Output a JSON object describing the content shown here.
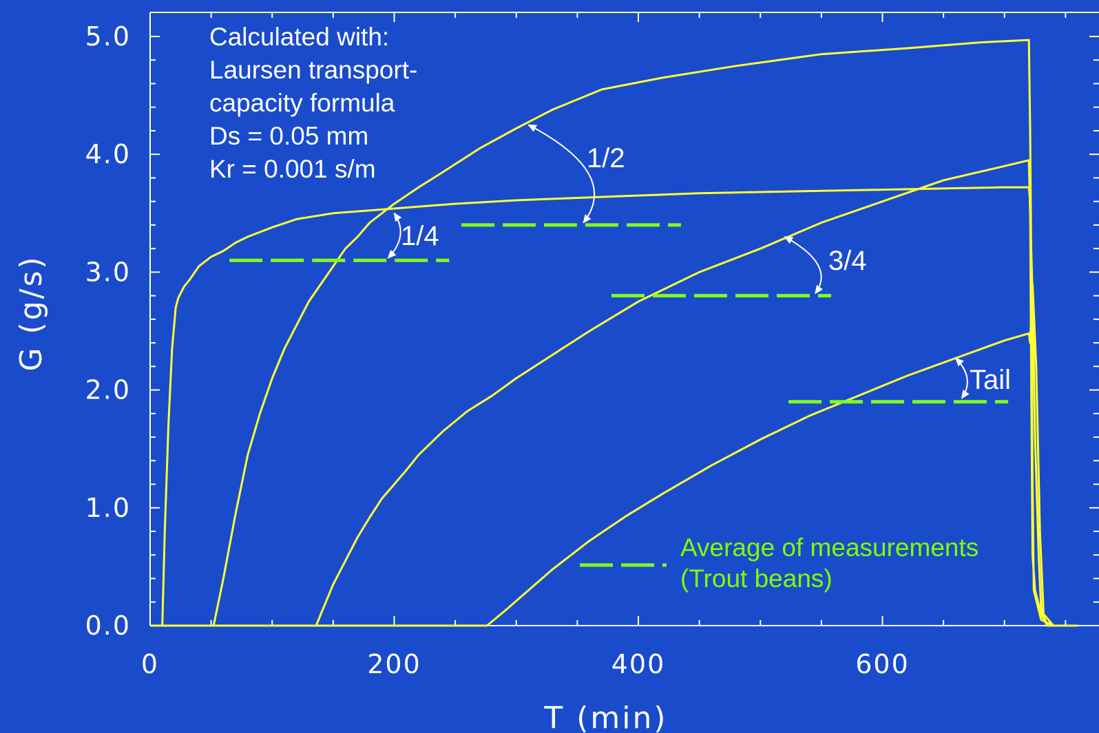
{
  "chart_data": {
    "type": "line",
    "xlabel": "T (min)",
    "ylabel": "G  (g/s)",
    "xlim": [
      0,
      760
    ],
    "ylim": [
      0,
      5.2
    ],
    "xticks": [
      "0",
      "200",
      "400",
      "600"
    ],
    "yticks": [
      "0.0",
      "1.0",
      "2.0",
      "3.0",
      "4.0",
      "5.0"
    ],
    "note_lines": [
      "Calculated with:",
      "Laursen transport-",
      "capacity formula",
      "Ds = 0.05 mm",
      "Kr = 0.001 s/m"
    ],
    "series": [
      {
        "name": "1/4",
        "x": [
          0,
          10,
          11,
          12,
          15,
          18,
          21,
          23,
          25,
          28,
          32,
          40,
          50,
          60,
          70,
          80,
          100,
          120,
          150,
          200,
          250,
          300,
          350,
          400,
          450,
          500,
          600,
          700,
          720,
          721,
          722,
          723,
          725,
          730,
          735,
          740,
          760
        ],
        "y": [
          0,
          0,
          0.4,
          0.8,
          1.7,
          2.35,
          2.7,
          2.78,
          2.82,
          2.88,
          2.93,
          3.05,
          3.13,
          3.18,
          3.25,
          3.3,
          3.38,
          3.45,
          3.5,
          3.54,
          3.58,
          3.61,
          3.63,
          3.65,
          3.67,
          3.68,
          3.7,
          3.72,
          3.72,
          3.6,
          2.0,
          0.6,
          0.3,
          0.1,
          0,
          0,
          0
        ]
      },
      {
        "name": "1/2",
        "x": [
          0,
          52,
          60,
          70,
          80,
          90,
          100,
          110,
          120,
          130,
          140,
          150,
          160,
          170,
          180,
          200,
          220,
          240,
          270,
          300,
          330,
          370,
          420,
          480,
          550,
          620,
          680,
          720,
          721,
          722,
          723,
          724,
          730,
          740,
          760
        ],
        "y": [
          0,
          0,
          0.4,
          0.95,
          1.45,
          1.8,
          2.1,
          2.35,
          2.55,
          2.75,
          2.9,
          3.05,
          3.2,
          3.3,
          3.42,
          3.58,
          3.72,
          3.85,
          4.05,
          4.22,
          4.38,
          4.55,
          4.65,
          4.75,
          4.85,
          4.9,
          4.95,
          4.97,
          4.2,
          3.0,
          1.2,
          0.3,
          0.05,
          0,
          0
        ]
      },
      {
        "name": "3/4",
        "x": [
          0,
          136,
          140,
          150,
          160,
          170,
          180,
          190,
          200,
          210,
          220,
          240,
          260,
          280,
          300,
          330,
          360,
          400,
          450,
          500,
          550,
          600,
          650,
          700,
          720,
          721,
          723,
          725,
          728,
          730,
          735,
          760
        ],
        "y": [
          0,
          0,
          0.1,
          0.35,
          0.55,
          0.75,
          0.92,
          1.08,
          1.2,
          1.32,
          1.45,
          1.65,
          1.82,
          1.95,
          2.1,
          2.3,
          2.5,
          2.75,
          3.0,
          3.2,
          3.42,
          3.6,
          3.78,
          3.9,
          3.95,
          3.5,
          2.8,
          1.6,
          0.6,
          0.15,
          0,
          0
        ]
      },
      {
        "name": "Tail",
        "x": [
          0,
          276,
          290,
          310,
          330,
          360,
          390,
          420,
          460,
          500,
          540,
          580,
          620,
          660,
          700,
          720,
          721,
          723,
          726,
          729,
          732,
          740,
          760
        ],
        "y": [
          0,
          0,
          0.12,
          0.3,
          0.48,
          0.72,
          0.93,
          1.12,
          1.36,
          1.58,
          1.78,
          1.95,
          2.12,
          2.27,
          2.42,
          2.48,
          2.4,
          2.9,
          2.2,
          0.8,
          0.1,
          0,
          0
        ]
      }
    ],
    "measurements": {
      "legend_label": [
        "Average of measurements",
        "(Trout beans)"
      ],
      "segments": [
        {
          "name": "1/4",
          "x_start": 65,
          "x_end": 245,
          "y": 3.1
        },
        {
          "name": "1/2",
          "x_start": 255,
          "x_end": 435,
          "y": 3.4
        },
        {
          "name": "3/4",
          "x_start": 378,
          "x_end": 558,
          "y": 2.8
        },
        {
          "name": "Tail",
          "x_start": 523,
          "x_end": 703,
          "y": 1.9
        }
      ]
    },
    "annotations": [
      {
        "label": "1/4",
        "points_to": [
          [
            200,
            3.5
          ],
          [
            195,
            3.12
          ]
        ]
      },
      {
        "label": "1/2",
        "points_to": [
          [
            310,
            4.25
          ],
          [
            355,
            3.42
          ]
        ]
      },
      {
        "label": "3/4",
        "points_to": [
          [
            520,
            3.3
          ],
          [
            545,
            2.82
          ]
        ]
      },
      {
        "label": "Tail",
        "points_to": [
          [
            660,
            2.27
          ],
          [
            665,
            1.93
          ]
        ]
      }
    ],
    "colors": {
      "background": "#1a4bcb",
      "simulated": "#ffff33",
      "measured": "#80ff1a",
      "text": "#ffffff"
    },
    "grid": false
  }
}
